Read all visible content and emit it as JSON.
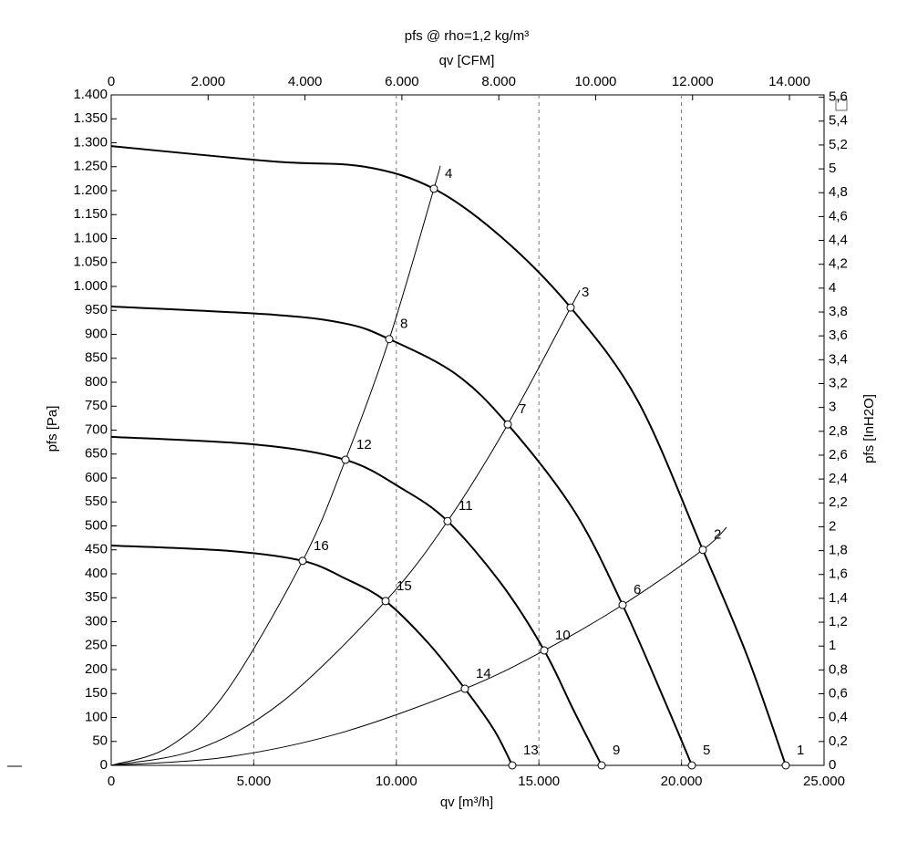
{
  "chart_data": {
    "type": "line",
    "title": "pfs @ rho=1,2 kg/m³",
    "x2_label": "qv [CFM]",
    "xlabel": "qv [m³/h]",
    "ylabel": "pfs [Pa]",
    "y2label": "pfs [InH2O]",
    "xlim": [
      0,
      25000
    ],
    "xticks": [
      0,
      {
        "value": 5000,
        "label": "5.000"
      },
      {
        "value": 10000,
        "label": "10.000"
      },
      {
        "value": 15000,
        "label": "15.000"
      },
      {
        "value": 20000,
        "label": "20.000"
      },
      {
        "value": 25000,
        "label": "25.000"
      }
    ],
    "x2lim": [
      0,
      14714
    ],
    "x2ticks": [
      0,
      {
        "value": 2000,
        "label": "2.000"
      },
      {
        "value": 4000,
        "label": "4.000"
      },
      {
        "value": 6000,
        "label": "6.000"
      },
      {
        "value": 8000,
        "label": "8.000"
      },
      {
        "value": 10000,
        "label": "10.000"
      },
      {
        "value": 12000,
        "label": "12.000"
      },
      {
        "value": 14000,
        "label": "14.000"
      }
    ],
    "ylim": [
      0,
      1400
    ],
    "yticks": [
      0,
      50,
      100,
      150,
      200,
      250,
      300,
      350,
      400,
      450,
      500,
      550,
      600,
      650,
      700,
      750,
      800,
      850,
      900,
      950,
      {
        "value": 1000,
        "label": "1.000"
      },
      {
        "value": 1050,
        "label": "1.050"
      },
      {
        "value": 1100,
        "label": "1.100"
      },
      {
        "value": 1150,
        "label": "1.150"
      },
      {
        "value": 1200,
        "label": "1.200"
      },
      {
        "value": 1250,
        "label": "1.250"
      },
      {
        "value": 1300,
        "label": "1.300"
      },
      {
        "value": 1350,
        "label": "1.350"
      },
      {
        "value": 1400,
        "label": "1.400"
      }
    ],
    "y2lim": [
      0,
      5.62
    ],
    "y2ticks": [
      0,
      {
        "value": 0.2,
        "label": "0,2"
      },
      {
        "value": 0.4,
        "label": "0,4"
      },
      {
        "value": 0.6,
        "label": "0,6"
      },
      {
        "value": 0.8,
        "label": "0,8"
      },
      1,
      {
        "value": 1.2,
        "label": "1,2"
      },
      {
        "value": 1.4,
        "label": "1,4"
      },
      {
        "value": 1.6,
        "label": "1,6"
      },
      {
        "value": 1.8,
        "label": "1,8"
      },
      2,
      {
        "value": 2.2,
        "label": "2,2"
      },
      {
        "value": 2.4,
        "label": "2,4"
      },
      {
        "value": 2.6,
        "label": "2,6"
      },
      {
        "value": 2.8,
        "label": "2,8"
      },
      3,
      {
        "value": 3.2,
        "label": "3,2"
      },
      {
        "value": 3.4,
        "label": "3,4"
      },
      {
        "value": 3.6,
        "label": "3,6"
      },
      {
        "value": 3.8,
        "label": "3,8"
      },
      4,
      {
        "value": 4.2,
        "label": "4,2"
      },
      {
        "value": 4.4,
        "label": "4,4"
      },
      {
        "value": 4.6,
        "label": "4,6"
      },
      {
        "value": 4.8,
        "label": "4,8"
      },
      5,
      {
        "value": 5.2,
        "label": "5,2"
      },
      {
        "value": 5.4,
        "label": "5,4"
      },
      {
        "value": 5.6,
        "label": "5,6"
      }
    ],
    "grid": true,
    "fan_curves": [
      {
        "x": [
          0,
          5691,
          8888,
          11317,
          13683,
          16112,
          18479,
          20748,
          22315,
          23657
        ],
        "values": [
          1293,
          1261,
          1250,
          1204,
          1103,
          956,
          760,
          450,
          227,
          0
        ]
      },
      {
        "x": [
          0,
          5691,
          8248,
          9751,
          12085,
          13907,
          16241,
          17935,
          19438,
          20364
        ],
        "values": [
          958,
          941,
          922,
          890,
          817,
          712,
          531,
          335,
          131,
          0
        ]
      },
      {
        "x": [
          0,
          5051,
          8216,
          10166,
          11797,
          13683,
          15186,
          16241,
          17200
        ],
        "values": [
          686,
          670,
          638,
          579,
          510,
          379,
          240,
          112,
          0
        ]
      },
      {
        "x": [
          0,
          4092,
          6714,
          8248,
          9623,
          11125,
          12404,
          13427,
          14067
        ],
        "values": [
          459,
          448,
          427,
          389,
          343,
          255,
          160,
          74,
          0
        ]
      }
    ],
    "system_lines": [
      {
        "x": [
          0,
          2000,
          4000,
          6714,
          8216,
          9751,
          11317,
          11541
        ],
        "values": [
          0,
          38,
          151,
          427,
          638,
          890,
          1204,
          1252
        ]
      },
      {
        "x": [
          0,
          3000,
          6000,
          9623,
          11797,
          13907,
          16112,
          16432
        ],
        "values": [
          0,
          33,
          133,
          343,
          510,
          712,
          956,
          992
        ]
      },
      {
        "x": [
          0,
          4000,
          8000,
          12404,
          15186,
          17935,
          20748,
          21580
        ],
        "values": [
          0,
          17,
          67,
          160,
          240,
          335,
          450,
          497
        ]
      }
    ],
    "points": [
      {
        "label": "1",
        "x": 23657,
        "y": 0
      },
      {
        "label": "2",
        "x": 20748,
        "y": 450
      },
      {
        "label": "3",
        "x": 16112,
        "y": 956
      },
      {
        "label": "4",
        "x": 11317,
        "y": 1204
      },
      {
        "label": "5",
        "x": 20364,
        "y": 0
      },
      {
        "label": "6",
        "x": 17935,
        "y": 335
      },
      {
        "label": "7",
        "x": 13907,
        "y": 712
      },
      {
        "label": "8",
        "x": 9751,
        "y": 890
      },
      {
        "label": "9",
        "x": 17200,
        "y": 0
      },
      {
        "label": "10",
        "x": 15186,
        "y": 240
      },
      {
        "label": "11",
        "x": 11797,
        "y": 510
      },
      {
        "label": "12",
        "x": 8216,
        "y": 638
      },
      {
        "label": "13",
        "x": 14067,
        "y": 0
      },
      {
        "label": "14",
        "x": 12404,
        "y": 160
      },
      {
        "label": "15",
        "x": 9623,
        "y": 343
      },
      {
        "label": "16",
        "x": 6714,
        "y": 427
      }
    ]
  }
}
